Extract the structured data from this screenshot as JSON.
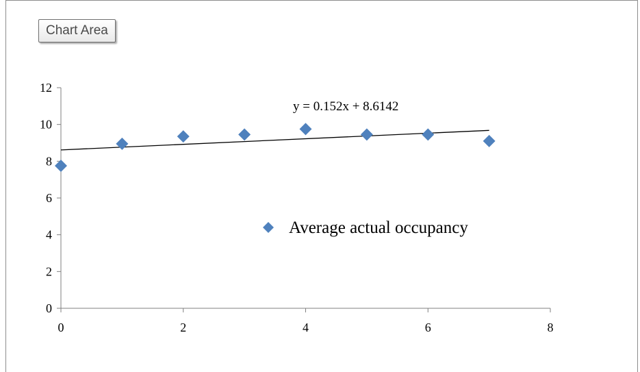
{
  "tooltip": {
    "label": "Chart Area"
  },
  "colors": {
    "marker": "#4f81bd",
    "trendline": "#000000",
    "axis": "#7f7f7f"
  },
  "chart_data": {
    "type": "scatter",
    "title": "",
    "xlabel": "",
    "ylabel": "",
    "xlim": [
      0,
      8
    ],
    "ylim": [
      0,
      12
    ],
    "x_ticks": [
      0,
      2,
      4,
      6,
      8
    ],
    "y_ticks": [
      0,
      2,
      4,
      6,
      8,
      10,
      12
    ],
    "grid": false,
    "legend_position": "center-right",
    "series": [
      {
        "name": "Average actual occupancy",
        "marker": "diamond",
        "x": [
          0,
          1,
          2,
          3,
          4,
          5,
          6,
          7
        ],
        "y": [
          7.75,
          8.95,
          9.35,
          9.45,
          9.75,
          9.45,
          9.45,
          9.1
        ]
      }
    ],
    "trendline": {
      "type": "linear",
      "slope": 0.152,
      "intercept": 8.6142,
      "x_range": [
        0,
        7
      ],
      "equation_label": "y = 0.152x  + 8.6142"
    }
  }
}
